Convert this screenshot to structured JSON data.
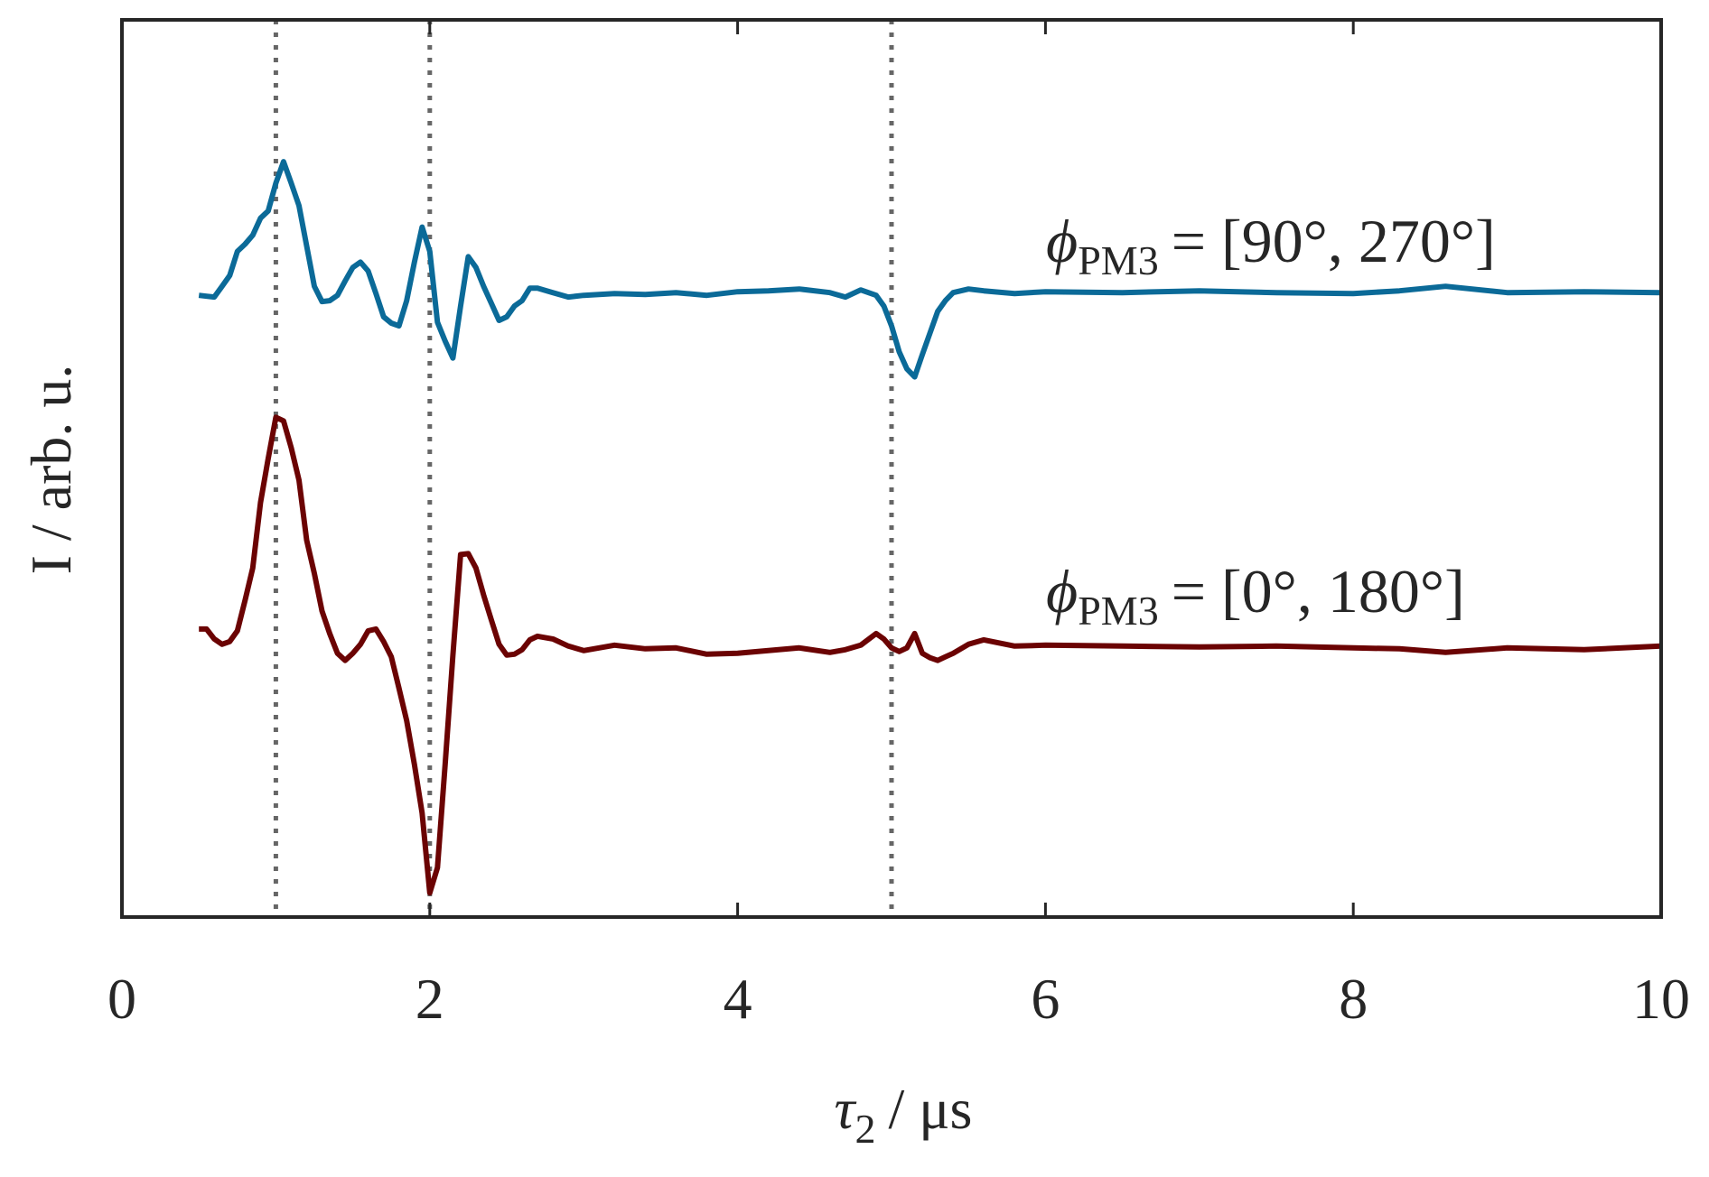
{
  "chart_data": {
    "type": "line",
    "xlabel": {
      "symbol": "τ",
      "subscript": "2",
      "unit": "/ μs"
    },
    "ylabel": "I / arb. u.",
    "xlim": [
      0,
      10
    ],
    "xticks": [
      0,
      2,
      4,
      6,
      8,
      10
    ],
    "ylim": [
      0,
      100
    ],
    "vlines": [
      1,
      2,
      5
    ],
    "x": [
      0.5,
      0.55,
      0.6,
      0.65,
      0.7,
      0.75,
      0.8,
      0.85,
      0.9,
      0.95,
      1.0,
      1.05,
      1.1,
      1.15,
      1.2,
      1.25,
      1.3,
      1.35,
      1.4,
      1.45,
      1.5,
      1.55,
      1.6,
      1.65,
      1.7,
      1.75,
      1.8,
      1.85,
      1.9,
      1.95,
      2.0,
      2.05,
      2.1,
      2.15,
      2.2,
      2.25,
      2.3,
      2.35,
      2.4,
      2.45,
      2.5,
      2.55,
      2.6,
      2.65,
      2.7,
      2.8,
      2.9,
      3.0,
      3.2,
      3.4,
      3.6,
      3.8,
      4.0,
      4.2,
      4.4,
      4.6,
      4.7,
      4.8,
      4.9,
      4.95,
      5.0,
      5.05,
      5.1,
      5.15,
      5.2,
      5.25,
      5.3,
      5.35,
      5.4,
      5.5,
      5.6,
      5.8,
      6.0,
      6.5,
      7.0,
      7.5,
      8.0,
      8.3,
      8.6,
      9.0,
      9.5,
      10.0
    ],
    "series": [
      {
        "color": "#0b6a98",
        "annotation": {
          "symbol": "ϕ",
          "subscript": "PM3",
          "text": "= [90°, 270°]"
        },
        "values": [
          69.3,
          69.2,
          69.1,
          70.3,
          71.5,
          74.2,
          75.0,
          76.0,
          77.9,
          78.7,
          81.8,
          84.2,
          81.8,
          79.3,
          74.8,
          70.3,
          68.6,
          68.7,
          69.3,
          70.9,
          72.4,
          73.0,
          72.0,
          69.5,
          66.9,
          66.2,
          65.9,
          68.7,
          73.0,
          76.9,
          74.2,
          66.3,
          64.2,
          62.3,
          68.1,
          73.6,
          72.4,
          70.3,
          68.4,
          66.5,
          66.9,
          68.1,
          68.7,
          70.1,
          70.1,
          69.6,
          69.1,
          69.3,
          69.5,
          69.4,
          69.6,
          69.3,
          69.7,
          69.8,
          70.0,
          69.6,
          69.1,
          69.9,
          69.3,
          68.1,
          65.9,
          63.0,
          61.1,
          60.2,
          62.7,
          65.1,
          67.5,
          68.7,
          69.6,
          70.0,
          69.8,
          69.5,
          69.7,
          69.6,
          69.8,
          69.6,
          69.5,
          69.8,
          70.3,
          69.6,
          69.7,
          69.6
        ]
      },
      {
        "color": "#6b0303",
        "annotation": {
          "symbol": "ϕ",
          "subscript": "PM3",
          "text": "= [0°, 180°]"
        },
        "values": [
          32.1,
          32.1,
          31.0,
          30.4,
          30.7,
          31.9,
          35.3,
          38.9,
          46.2,
          51.1,
          55.7,
          55.3,
          52.3,
          48.7,
          42.0,
          38.3,
          34.1,
          31.6,
          29.4,
          28.6,
          29.4,
          30.4,
          31.9,
          32.1,
          30.7,
          29.0,
          25.5,
          21.9,
          17.0,
          11.6,
          2.7,
          5.5,
          17.0,
          29.2,
          40.4,
          40.5,
          38.9,
          35.9,
          33.1,
          30.4,
          29.2,
          29.3,
          29.8,
          30.9,
          31.3,
          31.0,
          30.2,
          29.7,
          30.3,
          29.9,
          30.0,
          29.3,
          29.4,
          29.7,
          30.0,
          29.5,
          29.8,
          30.3,
          31.6,
          31.0,
          30.0,
          29.6,
          30.0,
          31.6,
          29.4,
          28.9,
          28.6,
          29.0,
          29.4,
          30.4,
          30.9,
          30.2,
          30.3,
          30.2,
          30.1,
          30.2,
          30.0,
          29.9,
          29.5,
          30.0,
          29.8,
          30.2
        ]
      }
    ]
  }
}
